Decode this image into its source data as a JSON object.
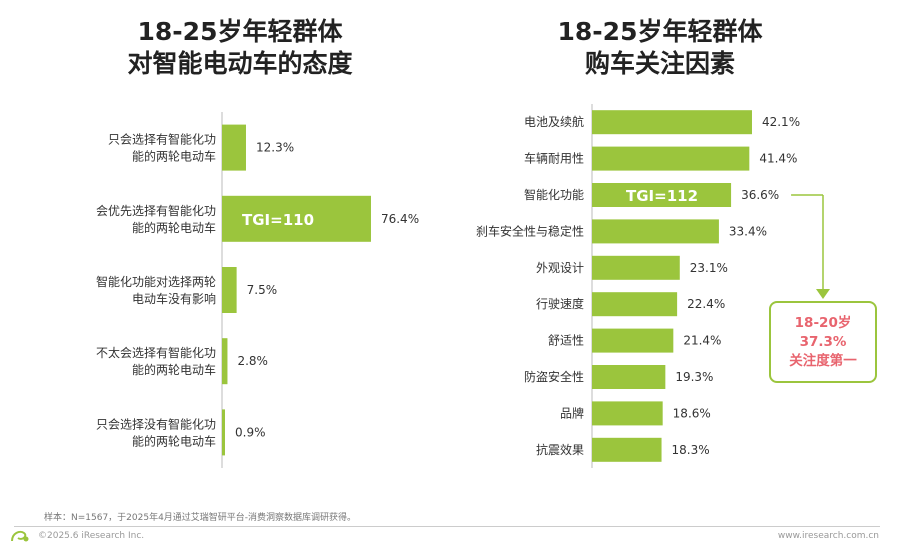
{
  "left_title": {
    "line1": "18-25岁年轻群体",
    "line2": "对智能电动车的态度"
  },
  "right_title": {
    "line1": "18-25岁年轻群体",
    "line2": "购车关注因素"
  },
  "colors": {
    "bar": "#9BC53D",
    "accent": "#E8646E",
    "axis": "#bbbbbb"
  },
  "chart_data": [
    {
      "type": "bar",
      "orientation": "horizontal",
      "title": "18-25岁年轻群体对智能电动车的态度",
      "categories": [
        [
          "只会选择有智能化功",
          "能的两轮电动车"
        ],
        [
          "会优先选择有智能化功",
          "能的两轮电动车"
        ],
        [
          "智能化功能对选择两轮",
          "电动车没有影响"
        ],
        [
          "不太会选择有智能化功",
          "能的两轮电动车"
        ],
        [
          "只会选择没有智能化功",
          "能的两轮电动车"
        ]
      ],
      "values": [
        12.3,
        76.4,
        7.5,
        2.8,
        0.9
      ],
      "labels": [
        "12.3%",
        "76.4%",
        "7.5%",
        "2.8%",
        "0.9%"
      ],
      "annotations": [
        {
          "index": 1,
          "text": "TGI=110"
        }
      ],
      "xlim": [
        0,
        100
      ]
    },
    {
      "type": "bar",
      "orientation": "horizontal",
      "title": "18-25岁年轻群体购车关注因素",
      "categories": [
        "电池及续航",
        "车辆耐用性",
        "智能化功能",
        "刹车安全性与稳定性",
        "外观设计",
        "行驶速度",
        "舒适性",
        "防盗安全性",
        "品牌",
        "抗震效果"
      ],
      "values": [
        42.1,
        41.4,
        36.6,
        33.4,
        23.1,
        22.4,
        21.4,
        19.3,
        18.6,
        18.3
      ],
      "labels": [
        "42.1%",
        "41.4%",
        "36.6%",
        "33.4%",
        "23.1%",
        "22.4%",
        "21.4%",
        "19.3%",
        "18.6%",
        "18.3%"
      ],
      "annotations": [
        {
          "index": 2,
          "text": "TGI=112"
        }
      ],
      "xlim": [
        0,
        50
      ]
    }
  ],
  "callout": {
    "line1": "18-20岁",
    "line2": "37.3%",
    "line3": "关注度第一"
  },
  "footer": {
    "note": "样本：N=1567，于2025年4月通过艾瑞智研平台-消费洞察数据库调研获得。",
    "copyright": "©2025.6 iResearch Inc.",
    "site": "www.iresearch.com.cn"
  }
}
